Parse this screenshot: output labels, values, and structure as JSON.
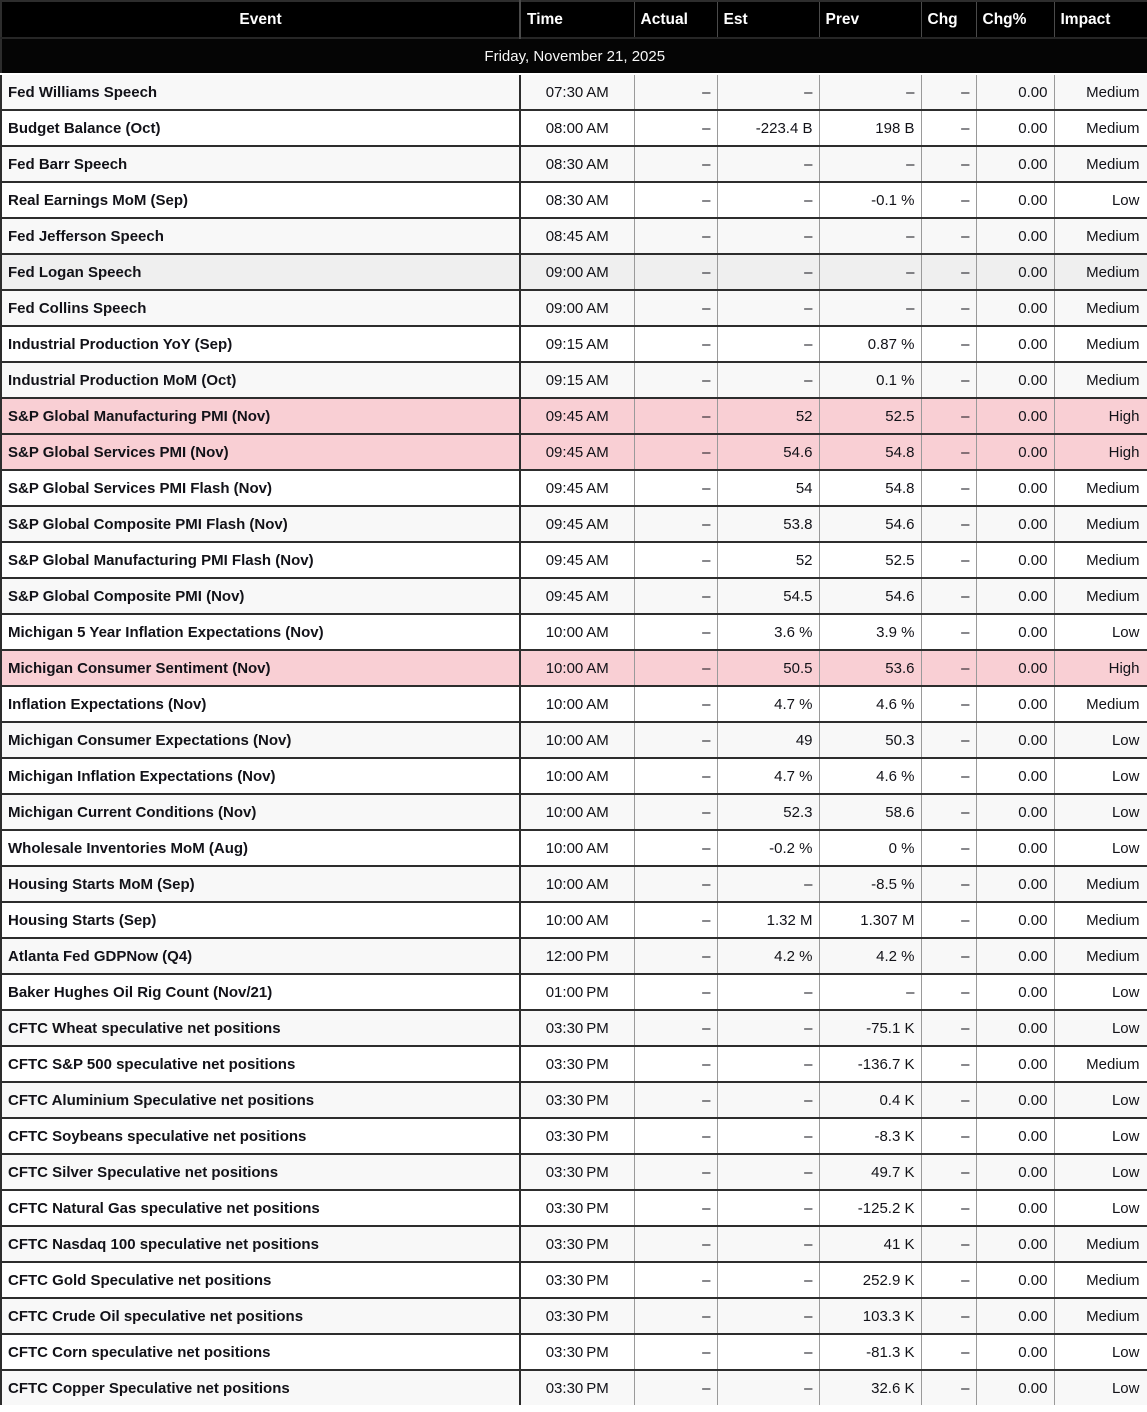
{
  "table": {
    "columns": [
      {
        "key": "event",
        "label": "Event"
      },
      {
        "key": "time",
        "label": "Time"
      },
      {
        "key": "actual",
        "label": "Actual"
      },
      {
        "key": "est",
        "label": "Est"
      },
      {
        "key": "prev",
        "label": "Prev"
      },
      {
        "key": "chg",
        "label": "Chg"
      },
      {
        "key": "chgpct",
        "label": "Chg%"
      },
      {
        "key": "impact",
        "label": "Impact"
      }
    ],
    "date_banner": "Friday, November 21, 2025",
    "rows": [
      {
        "event": "Fed Williams Speech",
        "time": "07:30 AM",
        "actual": "–",
        "est": "–",
        "prev": "–",
        "chg": "–",
        "chgpct": "0.00",
        "impact": "Medium"
      },
      {
        "event": "Budget Balance (Oct)",
        "time": "08:00 AM",
        "actual": "–",
        "est": "-223.4 B",
        "prev": "198 B",
        "chg": "–",
        "chgpct": "0.00",
        "impact": "Medium"
      },
      {
        "event": "Fed Barr Speech",
        "time": "08:30 AM",
        "actual": "–",
        "est": "–",
        "prev": "–",
        "chg": "–",
        "chgpct": "0.00",
        "impact": "Medium"
      },
      {
        "event": "Real Earnings MoM (Sep)",
        "time": "08:30 AM",
        "actual": "–",
        "est": "–",
        "prev": "-0.1 %",
        "chg": "–",
        "chgpct": "0.00",
        "impact": "Low"
      },
      {
        "event": "Fed Jefferson Speech",
        "time": "08:45 AM",
        "actual": "–",
        "est": "–",
        "prev": "–",
        "chg": "–",
        "chgpct": "0.00",
        "impact": "Medium"
      },
      {
        "event": "Fed Logan Speech",
        "time": "09:00 AM",
        "actual": "–",
        "est": "–",
        "prev": "–",
        "chg": "–",
        "chgpct": "0.00",
        "impact": "Medium",
        "hovered": true
      },
      {
        "event": "Fed Collins Speech",
        "time": "09:00 AM",
        "actual": "–",
        "est": "–",
        "prev": "–",
        "chg": "–",
        "chgpct": "0.00",
        "impact": "Medium"
      },
      {
        "event": "Industrial Production YoY (Sep)",
        "time": "09:15 AM",
        "actual": "–",
        "est": "–",
        "prev": "0.87 %",
        "chg": "–",
        "chgpct": "0.00",
        "impact": "Medium"
      },
      {
        "event": "Industrial Production MoM (Oct)",
        "time": "09:15 AM",
        "actual": "–",
        "est": "–",
        "prev": "0.1 %",
        "chg": "–",
        "chgpct": "0.00",
        "impact": "Medium"
      },
      {
        "event": "S&P Global Manufacturing PMI (Nov)",
        "time": "09:45 AM",
        "actual": "–",
        "est": "52",
        "prev": "52.5",
        "chg": "–",
        "chgpct": "0.00",
        "impact": "High"
      },
      {
        "event": "S&P Global Services PMI (Nov)",
        "time": "09:45 AM",
        "actual": "–",
        "est": "54.6",
        "prev": "54.8",
        "chg": "–",
        "chgpct": "0.00",
        "impact": "High"
      },
      {
        "event": "S&P Global Services PMI Flash (Nov)",
        "time": "09:45 AM",
        "actual": "–",
        "est": "54",
        "prev": "54.8",
        "chg": "–",
        "chgpct": "0.00",
        "impact": "Medium"
      },
      {
        "event": "S&P Global Composite PMI Flash (Nov)",
        "time": "09:45 AM",
        "actual": "–",
        "est": "53.8",
        "prev": "54.6",
        "chg": "–",
        "chgpct": "0.00",
        "impact": "Medium"
      },
      {
        "event": "S&P Global Manufacturing PMI Flash (Nov)",
        "time": "09:45 AM",
        "actual": "–",
        "est": "52",
        "prev": "52.5",
        "chg": "–",
        "chgpct": "0.00",
        "impact": "Medium"
      },
      {
        "event": "S&P Global Composite PMI (Nov)",
        "time": "09:45 AM",
        "actual": "–",
        "est": "54.5",
        "prev": "54.6",
        "chg": "–",
        "chgpct": "0.00",
        "impact": "Medium"
      },
      {
        "event": "Michigan 5 Year Inflation Expectations (Nov)",
        "time": "10:00 AM",
        "actual": "–",
        "est": "3.6 %",
        "prev": "3.9 %",
        "chg": "–",
        "chgpct": "0.00",
        "impact": "Low"
      },
      {
        "event": "Michigan Consumer Sentiment (Nov)",
        "time": "10:00 AM",
        "actual": "–",
        "est": "50.5",
        "prev": "53.6",
        "chg": "–",
        "chgpct": "0.00",
        "impact": "High"
      },
      {
        "event": "Inflation Expectations (Nov)",
        "time": "10:00 AM",
        "actual": "–",
        "est": "4.7 %",
        "prev": "4.6 %",
        "chg": "–",
        "chgpct": "0.00",
        "impact": "Medium"
      },
      {
        "event": "Michigan Consumer Expectations (Nov)",
        "time": "10:00 AM",
        "actual": "–",
        "est": "49",
        "prev": "50.3",
        "chg": "–",
        "chgpct": "0.00",
        "impact": "Low"
      },
      {
        "event": "Michigan Inflation Expectations (Nov)",
        "time": "10:00 AM",
        "actual": "–",
        "est": "4.7 %",
        "prev": "4.6 %",
        "chg": "–",
        "chgpct": "0.00",
        "impact": "Low"
      },
      {
        "event": "Michigan Current Conditions (Nov)",
        "time": "10:00 AM",
        "actual": "–",
        "est": "52.3",
        "prev": "58.6",
        "chg": "–",
        "chgpct": "0.00",
        "impact": "Low"
      },
      {
        "event": "Wholesale Inventories MoM (Aug)",
        "time": "10:00 AM",
        "actual": "–",
        "est": "-0.2 %",
        "prev": "0 %",
        "chg": "–",
        "chgpct": "0.00",
        "impact": "Low"
      },
      {
        "event": "Housing Starts MoM (Sep)",
        "time": "10:00 AM",
        "actual": "–",
        "est": "–",
        "prev": "-8.5 %",
        "chg": "–",
        "chgpct": "0.00",
        "impact": "Medium"
      },
      {
        "event": "Housing Starts (Sep)",
        "time": "10:00 AM",
        "actual": "–",
        "est": "1.32 M",
        "prev": "1.307 M",
        "chg": "–",
        "chgpct": "0.00",
        "impact": "Medium"
      },
      {
        "event": "Atlanta Fed GDPNow (Q4)",
        "time": "12:00 PM",
        "actual": "–",
        "est": "4.2 %",
        "prev": "4.2 %",
        "chg": "–",
        "chgpct": "0.00",
        "impact": "Medium"
      },
      {
        "event": "Baker Hughes Oil Rig Count (Nov/21)",
        "time": "01:00 PM",
        "actual": "–",
        "est": "–",
        "prev": "–",
        "chg": "–",
        "chgpct": "0.00",
        "impact": "Low"
      },
      {
        "event": "CFTC Wheat speculative net positions",
        "time": "03:30 PM",
        "actual": "–",
        "est": "–",
        "prev": "-75.1 K",
        "chg": "–",
        "chgpct": "0.00",
        "impact": "Low"
      },
      {
        "event": "CFTC S&P 500 speculative net positions",
        "time": "03:30 PM",
        "actual": "–",
        "est": "–",
        "prev": "-136.7 K",
        "chg": "–",
        "chgpct": "0.00",
        "impact": "Medium"
      },
      {
        "event": "CFTC Aluminium Speculative net positions",
        "time": "03:30 PM",
        "actual": "–",
        "est": "–",
        "prev": "0.4 K",
        "chg": "–",
        "chgpct": "0.00",
        "impact": "Low"
      },
      {
        "event": "CFTC Soybeans speculative net positions",
        "time": "03:30 PM",
        "actual": "–",
        "est": "–",
        "prev": "-8.3 K",
        "chg": "–",
        "chgpct": "0.00",
        "impact": "Low"
      },
      {
        "event": "CFTC Silver Speculative net positions",
        "time": "03:30 PM",
        "actual": "–",
        "est": "–",
        "prev": "49.7 K",
        "chg": "–",
        "chgpct": "0.00",
        "impact": "Low"
      },
      {
        "event": "CFTC Natural Gas speculative net positions",
        "time": "03:30 PM",
        "actual": "–",
        "est": "–",
        "prev": "-125.2 K",
        "chg": "–",
        "chgpct": "0.00",
        "impact": "Low"
      },
      {
        "event": "CFTC Nasdaq 100 speculative net positions",
        "time": "03:30 PM",
        "actual": "–",
        "est": "–",
        "prev": "41 K",
        "chg": "–",
        "chgpct": "0.00",
        "impact": "Medium"
      },
      {
        "event": "CFTC Gold Speculative net positions",
        "time": "03:30 PM",
        "actual": "–",
        "est": "–",
        "prev": "252.9 K",
        "chg": "–",
        "chgpct": "0.00",
        "impact": "Medium"
      },
      {
        "event": "CFTC Crude Oil speculative net positions",
        "time": "03:30 PM",
        "actual": "–",
        "est": "–",
        "prev": "103.3 K",
        "chg": "–",
        "chgpct": "0.00",
        "impact": "Medium"
      },
      {
        "event": "CFTC Corn speculative net positions",
        "time": "03:30 PM",
        "actual": "–",
        "est": "–",
        "prev": "-81.3 K",
        "chg": "–",
        "chgpct": "0.00",
        "impact": "Low"
      },
      {
        "event": "CFTC Copper Speculative net positions",
        "time": "03:30 PM",
        "actual": "–",
        "est": "–",
        "prev": "32.6 K",
        "chg": "–",
        "chgpct": "0.00",
        "impact": "Low"
      }
    ]
  },
  "colors": {
    "header_bg": "#000000",
    "date_banner_bg": "#050505",
    "high_impact_row_bg": "#f9cfd4",
    "row_stripe_bg": "#f8f8f8",
    "row_hover_bg": "#efefef",
    "grid_line": "#2d2d2d",
    "cell_divider": "#9a9a9a"
  }
}
